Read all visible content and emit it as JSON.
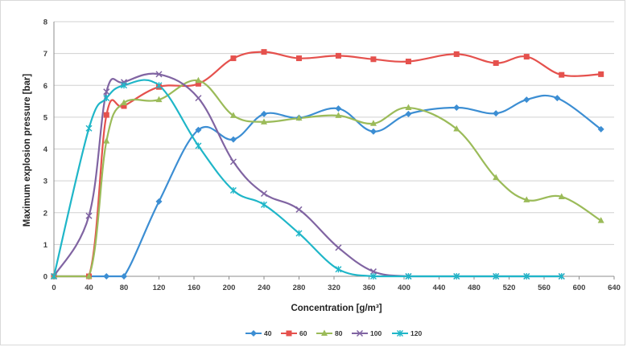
{
  "chart_data": {
    "type": "line",
    "title": "",
    "xlabel": "Concentration [g/m³]",
    "ylabel": "Maximum explosion pressure [bar]",
    "xlim": [
      0,
      640
    ],
    "ylim": [
      0,
      8
    ],
    "x_ticks": [
      "0",
      "40",
      "80",
      "120",
      "160",
      "200",
      "240",
      "280",
      "320",
      "360",
      "400",
      "440",
      "480",
      "520",
      "560",
      "600",
      "640"
    ],
    "y_ticks": [
      "0",
      "1",
      "2",
      "3",
      "4",
      "5",
      "6",
      "7",
      "8"
    ],
    "grid": "horizontal",
    "smooth": true,
    "legend_position": "bottom",
    "series": [
      {
        "name": "40",
        "color": "#3c8ed3",
        "marker": "diamond",
        "points": [
          [
            0,
            0
          ],
          [
            60,
            0
          ],
          [
            80,
            0
          ],
          [
            120,
            2.35
          ],
          [
            165,
            4.6
          ],
          [
            205,
            4.3
          ],
          [
            240,
            5.1
          ],
          [
            280,
            4.98
          ],
          [
            325,
            5.27
          ],
          [
            365,
            4.55
          ],
          [
            405,
            5.1
          ],
          [
            460,
            5.3
          ],
          [
            505,
            5.12
          ],
          [
            540,
            5.55
          ],
          [
            575,
            5.6
          ],
          [
            625,
            4.62
          ]
        ]
      },
      {
        "name": "60",
        "color": "#e5514d",
        "marker": "square",
        "points": [
          [
            0,
            0
          ],
          [
            40,
            0
          ],
          [
            60,
            5.07
          ],
          [
            80,
            5.35
          ],
          [
            120,
            5.95
          ],
          [
            165,
            6.05
          ],
          [
            205,
            6.85
          ],
          [
            240,
            7.05
          ],
          [
            280,
            6.85
          ],
          [
            325,
            6.93
          ],
          [
            365,
            6.82
          ],
          [
            405,
            6.75
          ],
          [
            460,
            6.98
          ],
          [
            505,
            6.7
          ],
          [
            540,
            6.9
          ],
          [
            580,
            6.33
          ],
          [
            625,
            6.35
          ]
        ]
      },
      {
        "name": "80",
        "color": "#9bbb59",
        "marker": "triangle",
        "points": [
          [
            0,
            0
          ],
          [
            40,
            0
          ],
          [
            60,
            4.25
          ],
          [
            80,
            5.45
          ],
          [
            120,
            5.55
          ],
          [
            165,
            6.15
          ],
          [
            205,
            5.05
          ],
          [
            240,
            4.85
          ],
          [
            280,
            4.97
          ],
          [
            325,
            5.05
          ],
          [
            365,
            4.8
          ],
          [
            405,
            5.3
          ],
          [
            460,
            4.63
          ],
          [
            505,
            3.1
          ],
          [
            540,
            2.4
          ],
          [
            580,
            2.5
          ],
          [
            625,
            1.75
          ]
        ]
      },
      {
        "name": "100",
        "color": "#8064a2",
        "marker": "x",
        "points": [
          [
            0,
            0
          ],
          [
            40,
            1.9
          ],
          [
            60,
            5.8
          ],
          [
            80,
            6.1
          ],
          [
            120,
            6.35
          ],
          [
            165,
            5.6
          ],
          [
            205,
            3.6
          ],
          [
            240,
            2.6
          ],
          [
            280,
            2.1
          ],
          [
            325,
            0.9
          ],
          [
            365,
            0.15
          ],
          [
            405,
            0
          ],
          [
            460,
            0
          ],
          [
            505,
            0
          ],
          [
            540,
            0
          ],
          [
            580,
            0
          ]
        ]
      },
      {
        "name": "120",
        "color": "#1fb6c8",
        "marker": "star",
        "points": [
          [
            0,
            0
          ],
          [
            40,
            4.65
          ],
          [
            60,
            5.6
          ],
          [
            80,
            6.0
          ],
          [
            120,
            6.0
          ],
          [
            165,
            4.1
          ],
          [
            205,
            2.7
          ],
          [
            240,
            2.25
          ],
          [
            280,
            1.35
          ],
          [
            325,
            0.22
          ],
          [
            365,
            0
          ],
          [
            405,
            0
          ],
          [
            460,
            0
          ],
          [
            505,
            0
          ],
          [
            540,
            0
          ],
          [
            580,
            0
          ]
        ]
      }
    ]
  }
}
